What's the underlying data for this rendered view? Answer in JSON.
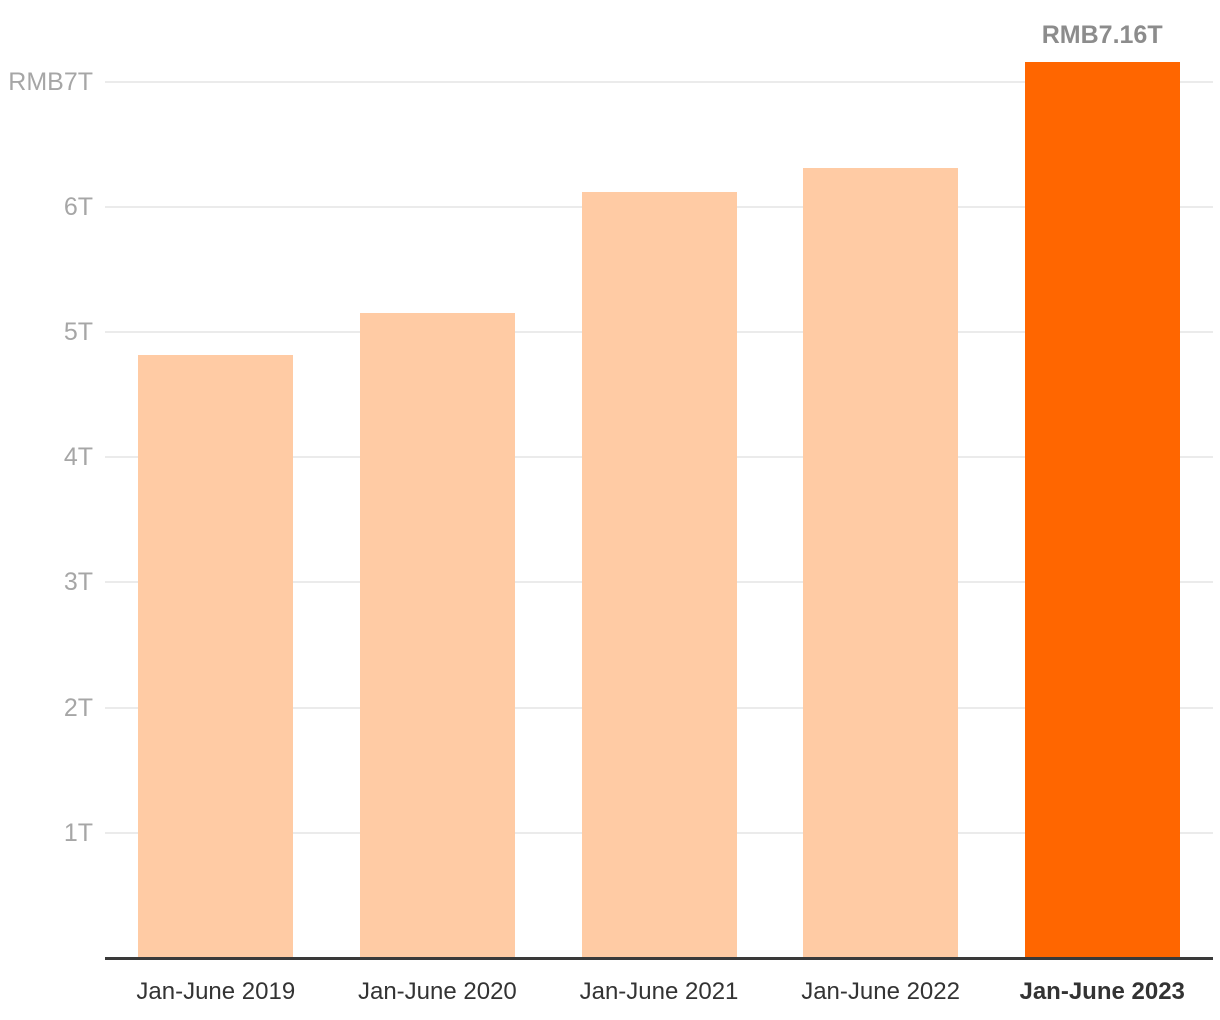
{
  "chart_data": {
    "type": "bar",
    "categories": [
      "Jan-June 2019",
      "Jan-June 2020",
      "Jan-June 2021",
      "Jan-June 2022",
      "Jan-June 2023"
    ],
    "values": [
      4.82,
      5.15,
      6.12,
      6.31,
      7.16
    ],
    "value_unit": "RMB trillions (T)",
    "highlight_index": 4,
    "highlight_label": "RMB7.16T",
    "y_ticks": [
      {
        "value": 1,
        "label": "1T"
      },
      {
        "value": 2,
        "label": "2T"
      },
      {
        "value": 3,
        "label": "3T"
      },
      {
        "value": 4,
        "label": "4T"
      },
      {
        "value": 5,
        "label": "5T"
      },
      {
        "value": 6,
        "label": "6T"
      },
      {
        "value": 7,
        "label": "RMB7T"
      }
    ],
    "ylim": [
      0,
      7.65
    ],
    "grid": true,
    "legend_position": "none",
    "colors": {
      "bar": "#FFCBA4",
      "highlight_bar": "#FF6600",
      "gridline": "#EBEBEB",
      "axis_line": "#3A3A3A",
      "y_tick_label": "#A6A6A6",
      "x_tick_label": "#333333",
      "annotation": "#8C8C8C",
      "background": "#FFFFFF"
    }
  }
}
